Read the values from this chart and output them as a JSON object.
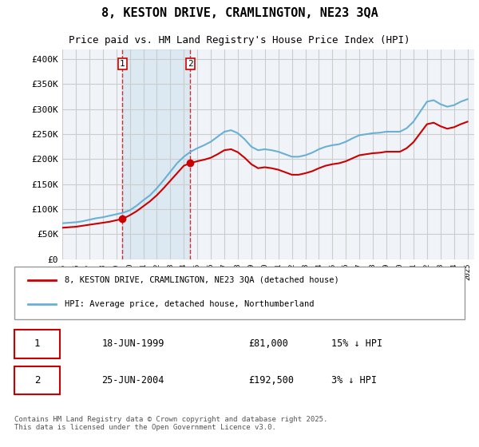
{
  "title": "8, KESTON DRIVE, CRAMLINGTON, NE23 3QA",
  "subtitle": "Price paid vs. HM Land Registry's House Price Index (HPI)",
  "ylabel_ticks": [
    "£0",
    "£50K",
    "£100K",
    "£150K",
    "£200K",
    "£250K",
    "£300K",
    "£350K",
    "£400K"
  ],
  "ytick_values": [
    0,
    50000,
    100000,
    150000,
    200000,
    250000,
    300000,
    350000,
    400000
  ],
  "ylim": [
    0,
    420000
  ],
  "xlim_start": 1995.0,
  "xlim_end": 2025.5,
  "sale1": {
    "label": "1",
    "date": "18-JUN-1999",
    "price": 81000,
    "hpi_rel": "15% ↓ HPI",
    "x": 1999.46,
    "color": "#cc0000"
  },
  "sale2": {
    "label": "2",
    "date": "25-JUN-2004",
    "price": 192500,
    "hpi_rel": "3% ↓ HPI",
    "x": 2004.48,
    "color": "#cc0000"
  },
  "legend_line1": "8, KESTON DRIVE, CRAMLINGTON, NE23 3QA (detached house)",
  "legend_line2": "HPI: Average price, detached house, Northumberland",
  "footer": "Contains HM Land Registry data © Crown copyright and database right 2025.\nThis data is licensed under the Open Government Licence v3.0.",
  "line_color_red": "#cc0000",
  "line_color_blue": "#6ab0d4",
  "vline_color": "#cc0000",
  "grid_color": "#cccccc",
  "bg_color": "#ffffff",
  "plot_bg_color": "#f0f4f8",
  "table_header_bg": "#ffffff",
  "sale_marker_color": "#cc0000",
  "hpi_years": [
    1995,
    1995.5,
    1996,
    1996.5,
    1997,
    1997.5,
    1998,
    1998.5,
    1999,
    1999.5,
    2000,
    2000.5,
    2001,
    2001.5,
    2002,
    2002.5,
    2003,
    2003.5,
    2004,
    2004.5,
    2005,
    2005.5,
    2006,
    2006.5,
    2007,
    2007.5,
    2008,
    2008.5,
    2009,
    2009.5,
    2010,
    2010.5,
    2011,
    2011.5,
    2012,
    2012.5,
    2013,
    2013.5,
    2014,
    2014.5,
    2015,
    2015.5,
    2016,
    2016.5,
    2017,
    2017.5,
    2018,
    2018.5,
    2019,
    2019.5,
    2020,
    2020.5,
    2021,
    2021.5,
    2022,
    2022.5,
    2023,
    2023.5,
    2024,
    2024.5,
    2025
  ],
  "hpi_values": [
    72000,
    73000,
    74000,
    76000,
    79000,
    82000,
    84000,
    87000,
    90000,
    93000,
    98000,
    107000,
    118000,
    128000,
    142000,
    158000,
    175000,
    192000,
    205000,
    215000,
    222000,
    228000,
    235000,
    245000,
    255000,
    258000,
    252000,
    240000,
    225000,
    218000,
    220000,
    218000,
    215000,
    210000,
    205000,
    205000,
    208000,
    213000,
    220000,
    225000,
    228000,
    230000,
    235000,
    242000,
    248000,
    250000,
    252000,
    253000,
    255000,
    255000,
    255000,
    262000,
    275000,
    295000,
    315000,
    318000,
    310000,
    305000,
    308000,
    315000,
    320000
  ],
  "red_years": [
    1995,
    1995.5,
    1996,
    1996.5,
    1997,
    1997.5,
    1998,
    1998.5,
    1999,
    1999.5,
    2000,
    2000.5,
    2001,
    2001.5,
    2002,
    2002.5,
    2003,
    2003.5,
    2004,
    2004.5,
    2005,
    2005.5,
    2006,
    2006.5,
    2007,
    2007.5,
    2008,
    2008.5,
    2009,
    2009.5,
    2010,
    2010.5,
    2011,
    2011.5,
    2012,
    2012.5,
    2013,
    2013.5,
    2014,
    2014.5,
    2015,
    2015.5,
    2016,
    2016.5,
    2017,
    2017.5,
    2018,
    2018.5,
    2019,
    2019.5,
    2020,
    2020.5,
    2021,
    2021.5,
    2022,
    2022.5,
    2023,
    2023.5,
    2024,
    2024.5,
    2025
  ],
  "red_values": [
    63000,
    64000,
    65000,
    67000,
    69000,
    71000,
    73000,
    75000,
    78000,
    81000,
    88000,
    96000,
    106000,
    116000,
    128000,
    142000,
    157000,
    172000,
    187000,
    192500,
    196000,
    199000,
    203000,
    210000,
    218000,
    220000,
    214000,
    203000,
    190000,
    182000,
    184000,
    182000,
    179000,
    174000,
    169000,
    169000,
    172000,
    176000,
    182000,
    187000,
    190000,
    192000,
    196000,
    202000,
    208000,
    210000,
    212000,
    213000,
    215000,
    215000,
    215000,
    222000,
    234000,
    252000,
    270000,
    273000,
    266000,
    261000,
    264000,
    270000,
    275000
  ]
}
